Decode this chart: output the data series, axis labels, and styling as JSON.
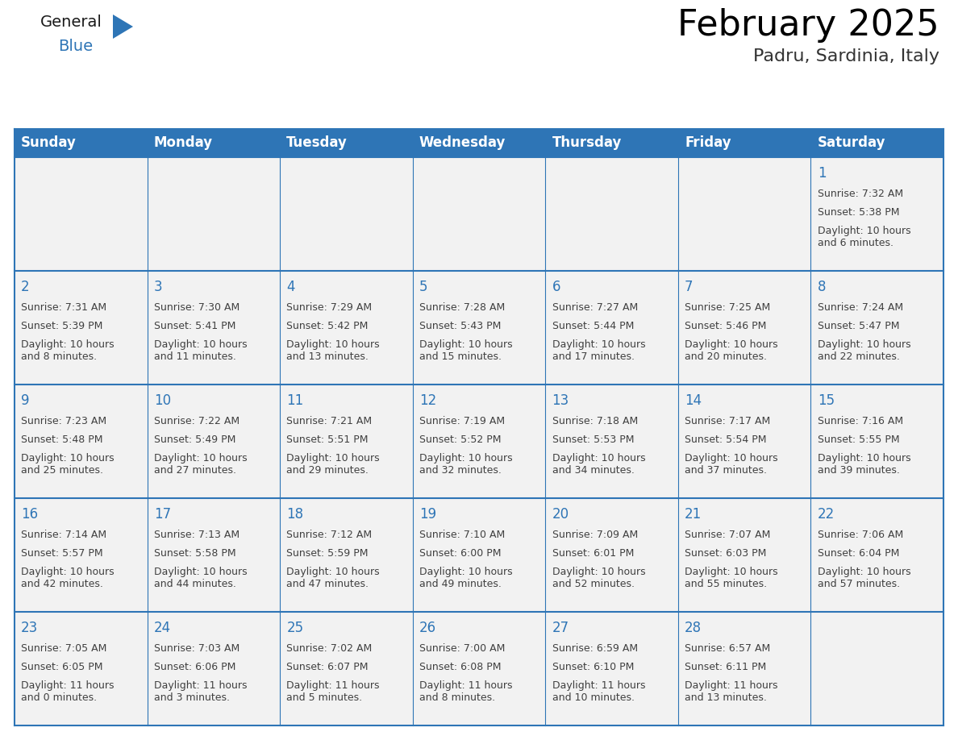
{
  "title": "February 2025",
  "subtitle": "Padru, Sardinia, Italy",
  "header_bg": "#2E75B6",
  "header_text_color": "#FFFFFF",
  "cell_bg": "#F2F2F2",
  "cell_bg_empty": "#F2F2F2",
  "border_color": "#2E75B6",
  "day_number_color": "#2E75B6",
  "cell_text_color": "#404040",
  "days_of_week": [
    "Sunday",
    "Monday",
    "Tuesday",
    "Wednesday",
    "Thursday",
    "Friday",
    "Saturday"
  ],
  "calendar_data": [
    [
      null,
      null,
      null,
      null,
      null,
      null,
      {
        "day": "1",
        "sunrise": "Sunrise: 7:32 AM",
        "sunset": "Sunset: 5:38 PM",
        "daylight": "Daylight: 10 hours\nand 6 minutes."
      }
    ],
    [
      {
        "day": "2",
        "sunrise": "Sunrise: 7:31 AM",
        "sunset": "Sunset: 5:39 PM",
        "daylight": "Daylight: 10 hours\nand 8 minutes."
      },
      {
        "day": "3",
        "sunrise": "Sunrise: 7:30 AM",
        "sunset": "Sunset: 5:41 PM",
        "daylight": "Daylight: 10 hours\nand 11 minutes."
      },
      {
        "day": "4",
        "sunrise": "Sunrise: 7:29 AM",
        "sunset": "Sunset: 5:42 PM",
        "daylight": "Daylight: 10 hours\nand 13 minutes."
      },
      {
        "day": "5",
        "sunrise": "Sunrise: 7:28 AM",
        "sunset": "Sunset: 5:43 PM",
        "daylight": "Daylight: 10 hours\nand 15 minutes."
      },
      {
        "day": "6",
        "sunrise": "Sunrise: 7:27 AM",
        "sunset": "Sunset: 5:44 PM",
        "daylight": "Daylight: 10 hours\nand 17 minutes."
      },
      {
        "day": "7",
        "sunrise": "Sunrise: 7:25 AM",
        "sunset": "Sunset: 5:46 PM",
        "daylight": "Daylight: 10 hours\nand 20 minutes."
      },
      {
        "day": "8",
        "sunrise": "Sunrise: 7:24 AM",
        "sunset": "Sunset: 5:47 PM",
        "daylight": "Daylight: 10 hours\nand 22 minutes."
      }
    ],
    [
      {
        "day": "9",
        "sunrise": "Sunrise: 7:23 AM",
        "sunset": "Sunset: 5:48 PM",
        "daylight": "Daylight: 10 hours\nand 25 minutes."
      },
      {
        "day": "10",
        "sunrise": "Sunrise: 7:22 AM",
        "sunset": "Sunset: 5:49 PM",
        "daylight": "Daylight: 10 hours\nand 27 minutes."
      },
      {
        "day": "11",
        "sunrise": "Sunrise: 7:21 AM",
        "sunset": "Sunset: 5:51 PM",
        "daylight": "Daylight: 10 hours\nand 29 minutes."
      },
      {
        "day": "12",
        "sunrise": "Sunrise: 7:19 AM",
        "sunset": "Sunset: 5:52 PM",
        "daylight": "Daylight: 10 hours\nand 32 minutes."
      },
      {
        "day": "13",
        "sunrise": "Sunrise: 7:18 AM",
        "sunset": "Sunset: 5:53 PM",
        "daylight": "Daylight: 10 hours\nand 34 minutes."
      },
      {
        "day": "14",
        "sunrise": "Sunrise: 7:17 AM",
        "sunset": "Sunset: 5:54 PM",
        "daylight": "Daylight: 10 hours\nand 37 minutes."
      },
      {
        "day": "15",
        "sunrise": "Sunrise: 7:16 AM",
        "sunset": "Sunset: 5:55 PM",
        "daylight": "Daylight: 10 hours\nand 39 minutes."
      }
    ],
    [
      {
        "day": "16",
        "sunrise": "Sunrise: 7:14 AM",
        "sunset": "Sunset: 5:57 PM",
        "daylight": "Daylight: 10 hours\nand 42 minutes."
      },
      {
        "day": "17",
        "sunrise": "Sunrise: 7:13 AM",
        "sunset": "Sunset: 5:58 PM",
        "daylight": "Daylight: 10 hours\nand 44 minutes."
      },
      {
        "day": "18",
        "sunrise": "Sunrise: 7:12 AM",
        "sunset": "Sunset: 5:59 PM",
        "daylight": "Daylight: 10 hours\nand 47 minutes."
      },
      {
        "day": "19",
        "sunrise": "Sunrise: 7:10 AM",
        "sunset": "Sunset: 6:00 PM",
        "daylight": "Daylight: 10 hours\nand 49 minutes."
      },
      {
        "day": "20",
        "sunrise": "Sunrise: 7:09 AM",
        "sunset": "Sunset: 6:01 PM",
        "daylight": "Daylight: 10 hours\nand 52 minutes."
      },
      {
        "day": "21",
        "sunrise": "Sunrise: 7:07 AM",
        "sunset": "Sunset: 6:03 PM",
        "daylight": "Daylight: 10 hours\nand 55 minutes."
      },
      {
        "day": "22",
        "sunrise": "Sunrise: 7:06 AM",
        "sunset": "Sunset: 6:04 PM",
        "daylight": "Daylight: 10 hours\nand 57 minutes."
      }
    ],
    [
      {
        "day": "23",
        "sunrise": "Sunrise: 7:05 AM",
        "sunset": "Sunset: 6:05 PM",
        "daylight": "Daylight: 11 hours\nand 0 minutes."
      },
      {
        "day": "24",
        "sunrise": "Sunrise: 7:03 AM",
        "sunset": "Sunset: 6:06 PM",
        "daylight": "Daylight: 11 hours\nand 3 minutes."
      },
      {
        "day": "25",
        "sunrise": "Sunrise: 7:02 AM",
        "sunset": "Sunset: 6:07 PM",
        "daylight": "Daylight: 11 hours\nand 5 minutes."
      },
      {
        "day": "26",
        "sunrise": "Sunrise: 7:00 AM",
        "sunset": "Sunset: 6:08 PM",
        "daylight": "Daylight: 11 hours\nand 8 minutes."
      },
      {
        "day": "27",
        "sunrise": "Sunrise: 6:59 AM",
        "sunset": "Sunset: 6:10 PM",
        "daylight": "Daylight: 11 hours\nand 10 minutes."
      },
      {
        "day": "28",
        "sunrise": "Sunrise: 6:57 AM",
        "sunset": "Sunset: 6:11 PM",
        "daylight": "Daylight: 11 hours\nand 13 minutes."
      },
      null
    ]
  ],
  "logo_text_general": "General",
  "logo_text_blue": "Blue",
  "logo_triangle_color": "#2E75B6",
  "title_fontsize": 32,
  "subtitle_fontsize": 16,
  "header_fontsize": 12,
  "day_number_fontsize": 12,
  "cell_text_fontsize": 9
}
